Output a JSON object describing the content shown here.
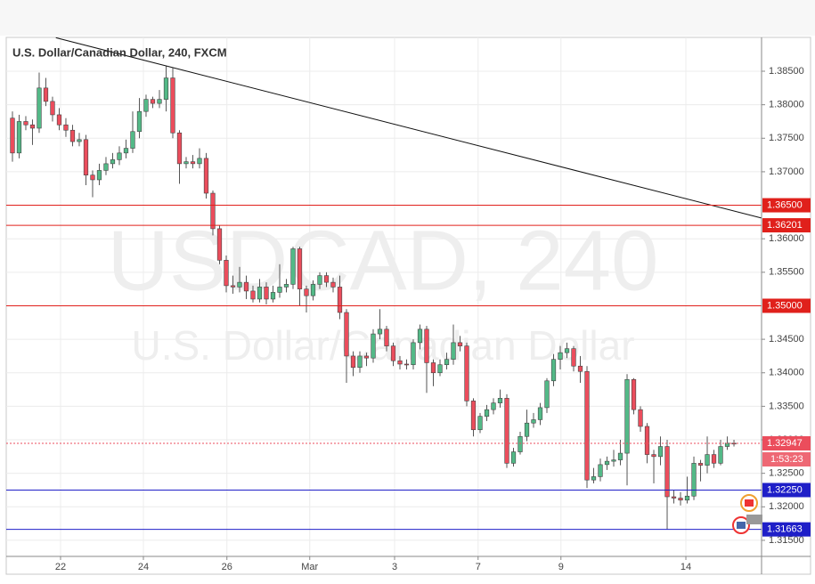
{
  "chart_data": {
    "type": "candlestick",
    "title": "U.S. Dollar/Canadian Dollar, 240, FXCM",
    "watermark": "USDCAD, 240",
    "watermark_subtitle": "U.S. Dollar/Canadian Dollar",
    "up_color": "#53b987",
    "down_color": "#eb4d5c",
    "open": [
      1.378,
      1.3728,
      1.3775,
      1.377,
      1.3765,
      1.3825,
      1.3805,
      1.3785,
      1.377,
      1.3762,
      1.3745,
      1.3748,
      1.3695,
      1.3688,
      1.3702,
      1.3712,
      1.3718,
      1.3728,
      1.3735,
      1.376,
      1.379,
      1.3808,
      1.3802,
      1.3808,
      1.384,
      1.3758,
      1.3712,
      1.3715,
      1.3712,
      1.372,
      1.3668,
      1.3615,
      1.3568,
      1.353,
      1.3528,
      1.3535,
      1.3522,
      1.351,
      1.3528,
      1.351,
      1.352,
      1.3528,
      1.3532,
      1.3585,
      1.3525,
      1.3515,
      1.3532,
      1.3545,
      1.3535,
      1.3528,
      1.349,
      1.3425,
      1.3408,
      1.3425,
      1.3422,
      1.3458,
      1.3465,
      1.344,
      1.3418,
      1.3413,
      1.3412,
      1.3445,
      1.3465,
      1.3415,
      1.34,
      1.3412,
      1.342,
      1.3445,
      1.344,
      1.3358,
      1.3315,
      1.3335,
      1.3345,
      1.3355,
      1.3362,
      1.3265,
      1.3282,
      1.3305,
      1.3325,
      1.333,
      1.3348,
      1.3388,
      1.342,
      1.343,
      1.3436,
      1.341,
      1.3402,
      1.324,
      1.3245,
      1.3263,
      1.3268,
      1.327,
      1.328,
      1.339,
      1.3345,
      1.332,
      1.3278,
      1.3275,
      1.329,
      1.3215,
      1.3213,
      1.321,
      1.3216,
      1.3265,
      1.3262,
      1.3278,
      1.3265,
      1.329,
      1.3295
    ],
    "high": [
      1.379,
      1.3785,
      1.3783,
      1.3778,
      1.3848,
      1.384,
      1.3812,
      1.3795,
      1.378,
      1.377,
      1.3758,
      1.3755,
      1.3702,
      1.3712,
      1.3722,
      1.3728,
      1.3738,
      1.3748,
      1.379,
      1.381,
      1.3815,
      1.3812,
      1.3822,
      1.3858,
      1.3855,
      1.3762,
      1.3722,
      1.3725,
      1.3735,
      1.3728,
      1.3672,
      1.362,
      1.3575,
      1.3545,
      1.3558,
      1.3545,
      1.353,
      1.354,
      1.3535,
      1.353,
      1.3562,
      1.354,
      1.3588,
      1.3588,
      1.353,
      1.3538,
      1.355,
      1.355,
      1.3542,
      1.3545,
      1.3495,
      1.3432,
      1.3432,
      1.343,
      1.3465,
      1.3495,
      1.347,
      1.3445,
      1.3425,
      1.342,
      1.345,
      1.3472,
      1.347,
      1.342,
      1.342,
      1.343,
      1.3472,
      1.3455,
      1.3445,
      1.3362,
      1.334,
      1.3352,
      1.3362,
      1.3375,
      1.3368,
      1.3288,
      1.3312,
      1.3345,
      1.334,
      1.3355,
      1.3392,
      1.3428,
      1.344,
      1.3445,
      1.344,
      1.3425,
      1.341,
      1.3258,
      1.3272,
      1.3275,
      1.3285,
      1.33,
      1.3398,
      1.3392,
      1.335,
      1.3325,
      1.3285,
      1.3305,
      1.33,
      1.3225,
      1.3222,
      1.3245,
      1.3275,
      1.327,
      1.3305,
      1.3285,
      1.33,
      1.3305,
      1.33
    ],
    "low": [
      1.3715,
      1.372,
      1.3762,
      1.374,
      1.3758,
      1.3798,
      1.3775,
      1.3762,
      1.3752,
      1.3738,
      1.3738,
      1.368,
      1.3662,
      1.368,
      1.3695,
      1.3705,
      1.371,
      1.372,
      1.3728,
      1.375,
      1.3782,
      1.3795,
      1.3795,
      1.379,
      1.375,
      1.3682,
      1.3705,
      1.3705,
      1.3705,
      1.366,
      1.3605,
      1.3562,
      1.352,
      1.3518,
      1.352,
      1.351,
      1.3505,
      1.3505,
      1.3502,
      1.3505,
      1.3512,
      1.352,
      1.3525,
      1.35,
      1.349,
      1.3508,
      1.3525,
      1.3528,
      1.352,
      1.348,
      1.3385,
      1.3395,
      1.34,
      1.341,
      1.3415,
      1.345,
      1.3432,
      1.341,
      1.3405,
      1.3405,
      1.3405,
      1.3435,
      1.337,
      1.338,
      1.3395,
      1.3405,
      1.3412,
      1.3432,
      1.335,
      1.3305,
      1.331,
      1.3328,
      1.3338,
      1.3348,
      1.3258,
      1.326,
      1.3278,
      1.3298,
      1.3318,
      1.3322,
      1.334,
      1.338,
      1.3405,
      1.3422,
      1.3402,
      1.3385,
      1.3228,
      1.3235,
      1.3238,
      1.3255,
      1.326,
      1.3262,
      1.3232,
      1.3338,
      1.3312,
      1.3265,
      1.3235,
      1.3262,
      1.3166,
      1.3205,
      1.3202,
      1.3205,
      1.321,
      1.3238,
      1.325,
      1.3258,
      1.3262,
      1.3285,
      1.329
    ],
    "close": [
      1.3728,
      1.3775,
      1.377,
      1.3765,
      1.3825,
      1.3805,
      1.3785,
      1.377,
      1.3762,
      1.3745,
      1.3748,
      1.3695,
      1.3688,
      1.3702,
      1.3712,
      1.3718,
      1.3728,
      1.3735,
      1.376,
      1.379,
      1.3808,
      1.3802,
      1.3808,
      1.384,
      1.3758,
      1.3712,
      1.3715,
      1.3712,
      1.372,
      1.3668,
      1.3615,
      1.3568,
      1.353,
      1.3528,
      1.3535,
      1.3522,
      1.351,
      1.3528,
      1.351,
      1.352,
      1.3528,
      1.3532,
      1.3585,
      1.3525,
      1.3515,
      1.3532,
      1.3545,
      1.3535,
      1.3528,
      1.349,
      1.3425,
      1.3408,
      1.3425,
      1.3422,
      1.3458,
      1.3465,
      1.344,
      1.3418,
      1.3413,
      1.3412,
      1.3445,
      1.3465,
      1.3415,
      1.34,
      1.3412,
      1.342,
      1.3445,
      1.344,
      1.3358,
      1.3315,
      1.3335,
      1.3345,
      1.3355,
      1.3362,
      1.3265,
      1.3282,
      1.3305,
      1.3325,
      1.333,
      1.3348,
      1.3388,
      1.342,
      1.343,
      1.3436,
      1.341,
      1.3402,
      1.324,
      1.3245,
      1.3263,
      1.3268,
      1.327,
      1.328,
      1.339,
      1.3345,
      1.332,
      1.3278,
      1.3275,
      1.329,
      1.3215,
      1.3213,
      1.321,
      1.3216,
      1.3265,
      1.3262,
      1.3278,
      1.3265,
      1.329,
      1.3295,
      1.32947
    ],
    "xlim": [
      -0.93,
      112.13
    ],
    "xticks": [
      {
        "value": 7.2,
        "label": "22"
      },
      {
        "value": 19.6,
        "label": "24"
      },
      {
        "value": 32.1,
        "label": "26"
      },
      {
        "value": 44.5,
        "label": "Mar"
      },
      {
        "value": 57.2,
        "label": "3"
      },
      {
        "value": 69.7,
        "label": "7"
      },
      {
        "value": 82.1,
        "label": "9"
      },
      {
        "value": 100.8,
        "label": "14"
      }
    ],
    "ylim": [
      1.3126,
      1.39005
    ],
    "yticks": [
      {
        "value": 1.315,
        "label": "1.31500"
      },
      {
        "value": 1.32,
        "label": "1.32000"
      },
      {
        "value": 1.325,
        "label": "1.32500"
      },
      {
        "value": 1.33,
        "label": "1.33000"
      },
      {
        "value": 1.335,
        "label": "1.33500"
      },
      {
        "value": 1.34,
        "label": "1.34000"
      },
      {
        "value": 1.345,
        "label": "1.34500"
      },
      {
        "value": 1.355,
        "label": "1.35500"
      },
      {
        "value": 1.36,
        "label": "1.36000"
      },
      {
        "value": 1.37,
        "label": "1.37000"
      },
      {
        "value": 1.375,
        "label": "1.37500"
      },
      {
        "value": 1.38,
        "label": "1.38000"
      },
      {
        "value": 1.385,
        "label": "1.38500"
      }
    ],
    "grid": true,
    "hlines": [
      {
        "value": 1.365,
        "label": "1.36500",
        "color": "#e0201b"
      },
      {
        "value": 1.36201,
        "label": "1.36201",
        "color": "#e0201b"
      },
      {
        "value": 1.35,
        "label": "1.35000",
        "color": "#e0201b"
      },
      {
        "value": 1.3225,
        "label": "1.32250",
        "color": "#1f1fc8"
      },
      {
        "value": 1.31663,
        "label": "1.31663",
        "color": "#1f1fc8"
      }
    ],
    "last_price": {
      "value": 1.32947,
      "label": "1.32947",
      "color": "#eb4d5c"
    },
    "countdown": "1:53:23",
    "trendline": {
      "x": [
        6.5,
        112.1
      ],
      "y": [
        1.39,
        1.3631
      ],
      "color": "#111111"
    }
  }
}
